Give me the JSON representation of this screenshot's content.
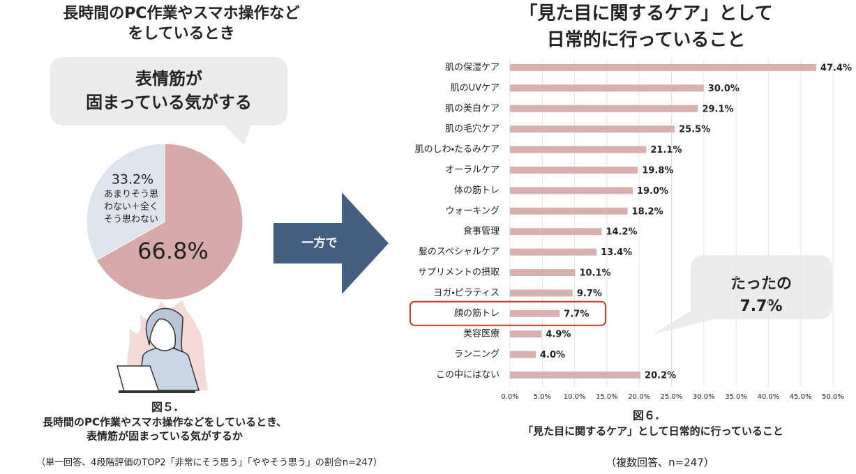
{
  "chart_data": [
    {
      "type": "pie",
      "title": [
        "長時間のPC作業やスマホ操作など",
        "をしているとき"
      ],
      "callout": [
        "表情筋が",
        "固まっている気がする"
      ],
      "categories": [
        null,
        [
          "あまりそう思",
          "わない＋全く",
          "そう思わない"
        ]
      ],
      "values": [
        66.8,
        33.2
      ],
      "value_labels": [
        "66.8%",
        "33.2%"
      ],
      "colors": [
        "#d5aaa9",
        "#dfe3ec"
      ],
      "figure": "図５.",
      "caption": [
        "長時間のPC作業やスマホ操作などをしているとき、",
        "表情筋が固まっている気がするか"
      ],
      "note": "（単一回答、4段階評価のTOP2「非常にそう思う」「ややそう思う」の割合n=247）"
    },
    {
      "type": "bar",
      "title": [
        "「見た目に関するケア」として",
        "日常的に行っていること"
      ],
      "categories": [
        "肌の保湿ケア",
        "肌のUVケア",
        "肌の美白ケア",
        "肌の毛穴ケア",
        "肌のしわ・たるみケア",
        "オーラルケア",
        "体の筋トレ",
        "ウォーキング",
        "食事管理",
        "髪のスペシャルケア",
        "サプリメントの摂取",
        "ヨガ・ピラティス",
        "顔の筋トレ",
        "美容医療",
        "ランニング",
        "この中にはない"
      ],
      "values": [
        47.4,
        30.0,
        29.1,
        25.5,
        21.1,
        19.8,
        19.0,
        18.2,
        14.2,
        13.4,
        10.1,
        9.7,
        7.7,
        4.9,
        4.0,
        20.2
      ],
      "value_labels": [
        "47.4%",
        "30.0%",
        "29.1%",
        "25.5%",
        "21.1%",
        "19.8%",
        "19.0%",
        "18.2%",
        "14.2%",
        "13.4%",
        "10.1%",
        "9.7%",
        "7.7%",
        "4.9%",
        "4.0%",
        "20.2%"
      ],
      "color": "#d8b0b0",
      "xlim": [
        0,
        50
      ],
      "xticks": [
        {
          "value": 0,
          "label": "0.0%"
        },
        {
          "value": 5,
          "label": "5.0%"
        },
        {
          "value": 10,
          "label": "10.0%"
        },
        {
          "value": 15,
          "label": "15.0%"
        },
        {
          "value": 20,
          "label": "20.0%"
        },
        {
          "value": 25,
          "label": "25.0%"
        },
        {
          "value": 30,
          "label": "30.0%"
        },
        {
          "value": 35,
          "label": "35.0%"
        },
        {
          "value": 40,
          "label": "40.0%"
        },
        {
          "value": 45,
          "label": "45.0%"
        },
        {
          "value": 50,
          "label": "50.0%"
        }
      ],
      "grid": true,
      "highlight_index": 12,
      "callout": [
        "たったの",
        "7.7%"
      ],
      "figure": "図６.",
      "caption": "「見た目に関するケア」として日常的に行っていること",
      "note": "（複数回答、n=247）"
    }
  ],
  "arrow_text": "一方で"
}
